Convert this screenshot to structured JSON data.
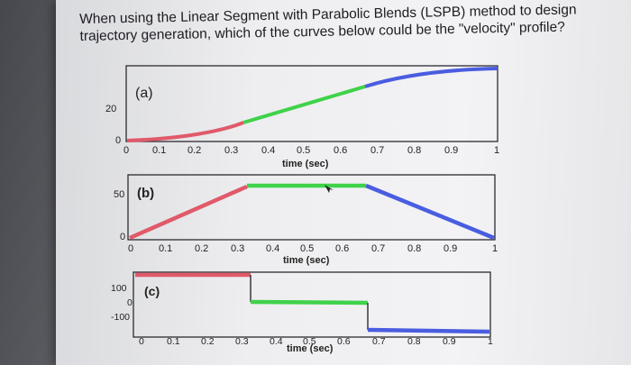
{
  "question": {
    "line1": "When using the Linear Segment with Parabolic Blends (LSPB) method to design",
    "line2": "trajectory generation, which of the curves below could be the \"velocity\" profile?"
  },
  "plots": [
    {
      "label": "(a)",
      "ytick": "20",
      "ytick_zero": "0",
      "xticks": [
        "0",
        "0.1",
        "0.2",
        "0.3",
        "0.4",
        "0.5",
        "0.6",
        "0.7",
        "0.8",
        "0.9",
        "1"
      ],
      "xlabel": "time (sec)"
    },
    {
      "label": "(b)",
      "ytick": "50",
      "ytick_zero": "0",
      "xticks": [
        "0",
        "0.1",
        "0.2",
        "0.3",
        "0.4",
        "0.5",
        "0.6",
        "0.7",
        "0.8",
        "0.9",
        "1"
      ],
      "xlabel": "time (sec)"
    },
    {
      "label": "(c)",
      "yticks": [
        "100",
        "0",
        "-100"
      ],
      "xticks": [
        "0",
        "0.1",
        "0.2",
        "0.3",
        "0.4",
        "0.5",
        "0.6",
        "0.7",
        "0.8",
        "0.9",
        "1"
      ],
      "xlabel": "time (sec)"
    }
  ],
  "colors": {
    "blend1": "#e05a6a",
    "linear": "#3fd24a",
    "blend2": "#4a5de0",
    "axis": "#2b2b30"
  }
}
